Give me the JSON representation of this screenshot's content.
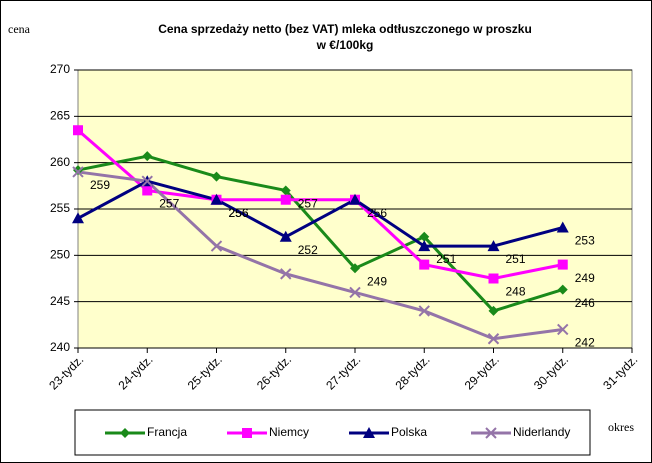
{
  "chart_data": {
    "type": "line",
    "title": "Cena sprzedaży netto (bez VAT) mleka odtłuszczonego w proszku",
    "subtitle": "w €/100kg",
    "y_label": "cena",
    "x_label": "okres",
    "categories": [
      "23-tydz.",
      "24-tydz.",
      "25-tydz.",
      "26-tydz.",
      "27-tydz.",
      "28-tydz.",
      "29-tydz.",
      "30-tydz.",
      "31-tydz."
    ],
    "ylim": [
      240,
      270
    ],
    "yticks": [
      240,
      245,
      250,
      255,
      260,
      265,
      270
    ],
    "grid": true,
    "series": [
      {
        "name": "Francja",
        "color": "#1a8a1a",
        "marker": "diamond",
        "values": [
          259.2,
          260.7,
          258.5,
          257,
          248.6,
          252,
          244,
          246.3,
          null
        ],
        "value_labels": [
          null,
          null,
          null,
          "257",
          "249",
          null,
          null,
          "246",
          null
        ]
      },
      {
        "name": "Niemcy",
        "color": "#ff00ff",
        "marker": "square",
        "values": [
          263.5,
          257,
          256,
          256,
          256,
          249,
          247.5,
          249,
          null
        ],
        "value_labels": [
          null,
          "257",
          "256",
          null,
          "256",
          null,
          "248",
          "249",
          null
        ]
      },
      {
        "name": "Polska",
        "color": "#000080",
        "marker": "triangle",
        "values": [
          254,
          258,
          256,
          252,
          256,
          251,
          251,
          253,
          null
        ],
        "value_labels": [
          null,
          null,
          "256",
          "252",
          null,
          "251",
          "251",
          "253",
          null
        ]
      },
      {
        "name": "Niderlandy",
        "color": "#9474a8",
        "marker": "x",
        "values": [
          259,
          258,
          251,
          248,
          246,
          244,
          241,
          242,
          null
        ],
        "value_labels": [
          "259",
          null,
          null,
          null,
          null,
          null,
          null,
          "242",
          null
        ]
      }
    ]
  }
}
